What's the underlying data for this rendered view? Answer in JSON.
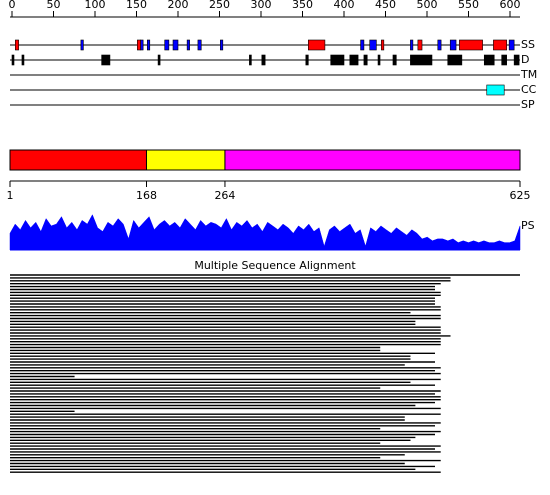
{
  "axis": {
    "xlim": [
      0,
      610
    ],
    "xticks": [
      0,
      50,
      100,
      150,
      200,
      250,
      300,
      350,
      400,
      450,
      500,
      550,
      600
    ]
  },
  "tracks": [
    {
      "label": "SS",
      "series": [
        {
          "color": "#ff0000",
          "segments": [
            [
              4,
              8
            ],
            [
              151,
              155
            ],
            [
              357,
              377
            ],
            [
              445,
              448
            ],
            [
              489,
              494
            ],
            [
              539,
              567
            ],
            [
              580,
              596
            ]
          ]
        },
        {
          "color": "#0000ff",
          "segments": [
            [
              83,
              86
            ],
            [
              155,
              158
            ],
            [
              163,
              166
            ],
            [
              184,
              189
            ],
            [
              194,
              200
            ],
            [
              211,
              214
            ],
            [
              224,
              228
            ],
            [
              251,
              254
            ],
            [
              420,
              424
            ],
            [
              431,
              439
            ],
            [
              480,
              483
            ],
            [
              513,
              517
            ],
            [
              528,
              535
            ],
            [
              599,
              605
            ]
          ]
        }
      ]
    },
    {
      "label": "D",
      "series": [
        {
          "color": "#000000",
          "segments": [
            [
              0,
              2
            ],
            [
              12,
              13
            ],
            [
              108,
              118
            ],
            [
              176,
              177
            ],
            [
              286,
              288
            ],
            [
              301,
              305
            ],
            [
              354,
              357
            ],
            [
              384,
              400
            ],
            [
              407,
              417
            ],
            [
              424,
              428
            ],
            [
              441,
              443
            ],
            [
              459,
              463
            ],
            [
              480,
              506
            ],
            [
              525,
              542
            ],
            [
              569,
              581
            ],
            [
              590,
              596
            ],
            [
              605,
              611
            ]
          ]
        }
      ]
    },
    {
      "label": "TM",
      "series": []
    },
    {
      "label": "CC",
      "series": [
        {
          "color": "#00ffff",
          "segments": [
            [
              572,
              593
            ]
          ]
        }
      ]
    },
    {
      "label": "SP",
      "series": []
    }
  ],
  "domains": {
    "boundaries": [
      1,
      168,
      264,
      625
    ],
    "colors": [
      "#ff0000",
      "#ffff00",
      "#ff00ff"
    ]
  },
  "profile": {
    "label": "PS",
    "color": "#0000ff",
    "ylim": [
      0,
      1
    ],
    "values": [
      0.45,
      0.7,
      0.55,
      0.8,
      0.6,
      0.75,
      0.5,
      0.85,
      0.65,
      0.7,
      0.9,
      0.6,
      0.75,
      0.55,
      0.8,
      0.7,
      0.95,
      0.6,
      0.5,
      0.75,
      0.65,
      0.85,
      0.7,
      0.3,
      0.8,
      0.6,
      0.75,
      0.9,
      0.55,
      0.7,
      0.8,
      0.65,
      0.75,
      0.6,
      0.85,
      0.7,
      0.55,
      0.8,
      0.65,
      0.75,
      0.7,
      0.6,
      0.85,
      0.55,
      0.75,
      0.65,
      0.8,
      0.6,
      0.7,
      0.5,
      0.75,
      0.65,
      0.55,
      0.7,
      0.6,
      0.45,
      0.65,
      0.55,
      0.7,
      0.5,
      0.6,
      0.1,
      0.55,
      0.65,
      0.5,
      0.6,
      0.7,
      0.45,
      0.55,
      0.1,
      0.6,
      0.5,
      0.65,
      0.55,
      0.45,
      0.6,
      0.5,
      0.4,
      0.55,
      0.45,
      0.3,
      0.35,
      0.25,
      0.3,
      0.3,
      0.25,
      0.3,
      0.2,
      0.25,
      0.2,
      0.25,
      0.2,
      0.25,
      0.2,
      0.2,
      0.25,
      0.2,
      0.2,
      0.25,
      0.65
    ]
  },
  "msa": {
    "title": "Multiple Sequence Alignment",
    "rows": [
      [
        1,
        625
      ],
      [
        1,
        540
      ],
      [
        1,
        540
      ],
      [
        1,
        528
      ],
      [
        1,
        521
      ],
      [
        1,
        521
      ],
      [
        1,
        528
      ],
      [
        1,
        528
      ],
      [
        1,
        521
      ],
      [
        1,
        521
      ],
      [
        1,
        521
      ],
      [
        1,
        528
      ],
      [
        1,
        528
      ],
      [
        1,
        491
      ],
      [
        1,
        528
      ],
      [
        1,
        528
      ],
      [
        1,
        497
      ],
      [
        1,
        497
      ],
      [
        1,
        528
      ],
      [
        1,
        528
      ],
      [
        1,
        528
      ],
      [
        1,
        540
      ],
      [
        1,
        528
      ],
      [
        1,
        528
      ],
      [
        1,
        528
      ],
      [
        1,
        454
      ],
      [
        1,
        454
      ],
      [
        1,
        521
      ],
      [
        1,
        491
      ],
      [
        1,
        491
      ],
      [
        1,
        521
      ],
      [
        1,
        484
      ],
      [
        1,
        528
      ],
      [
        1,
        521
      ],
      [
        1,
        528
      ],
      [
        1,
        80
      ],
      [
        1,
        528
      ],
      [
        1,
        491
      ],
      [
        1,
        521
      ],
      [
        1,
        454
      ],
      [
        1,
        528
      ],
      [
        1,
        521
      ],
      [
        1,
        528
      ],
      [
        1,
        528
      ],
      [
        1,
        521
      ],
      [
        1,
        497
      ],
      [
        1,
        528
      ],
      [
        1,
        80
      ],
      [
        1,
        528
      ],
      [
        1,
        484
      ],
      [
        1,
        484
      ],
      [
        1,
        528
      ],
      [
        1,
        521
      ],
      [
        1,
        454
      ],
      [
        1,
        528
      ],
      [
        1,
        521
      ],
      [
        1,
        497
      ],
      [
        1,
        491
      ],
      [
        1,
        454
      ],
      [
        1,
        528
      ],
      [
        1,
        521
      ],
      [
        1,
        528
      ],
      [
        1,
        484
      ],
      [
        1,
        454
      ],
      [
        1,
        528
      ],
      [
        1,
        484
      ],
      [
        1,
        521
      ],
      [
        1,
        497
      ],
      [
        1,
        528
      ]
    ]
  }
}
